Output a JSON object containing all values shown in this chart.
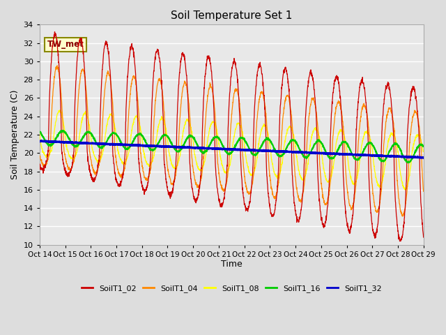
{
  "title": "Soil Temperature Set 1",
  "xlabel": "Time",
  "ylabel": "Soil Temperature (C)",
  "ylim": [
    10,
    34
  ],
  "yticks": [
    10,
    12,
    14,
    16,
    18,
    20,
    22,
    24,
    26,
    28,
    30,
    32,
    34
  ],
  "annotation_text": "TW_met",
  "series_colors": {
    "SoilT1_02": "#cc0000",
    "SoilT1_04": "#ff8800",
    "SoilT1_08": "#ffff00",
    "SoilT1_16": "#00cc00",
    "SoilT1_32": "#0000cc"
  },
  "xtick_labels": [
    "Oct 14",
    "Oct 15",
    "Oct 16",
    "Oct 17",
    "Oct 18",
    "Oct 19",
    "Oct 20",
    "Oct 21",
    "Oct 22",
    "Oct 23",
    "Oct 24",
    "Oct 25",
    "Oct 26",
    "Oct 27",
    "Oct 28",
    "Oct 29"
  ],
  "n_days": 15,
  "points_per_day": 144,
  "legend_entries": [
    "SoilT1_02",
    "SoilT1_04",
    "SoilT1_08",
    "SoilT1_16",
    "SoilT1_32"
  ],
  "bg_color": "#dddddd",
  "plot_bg_color": "#e8e8e8"
}
